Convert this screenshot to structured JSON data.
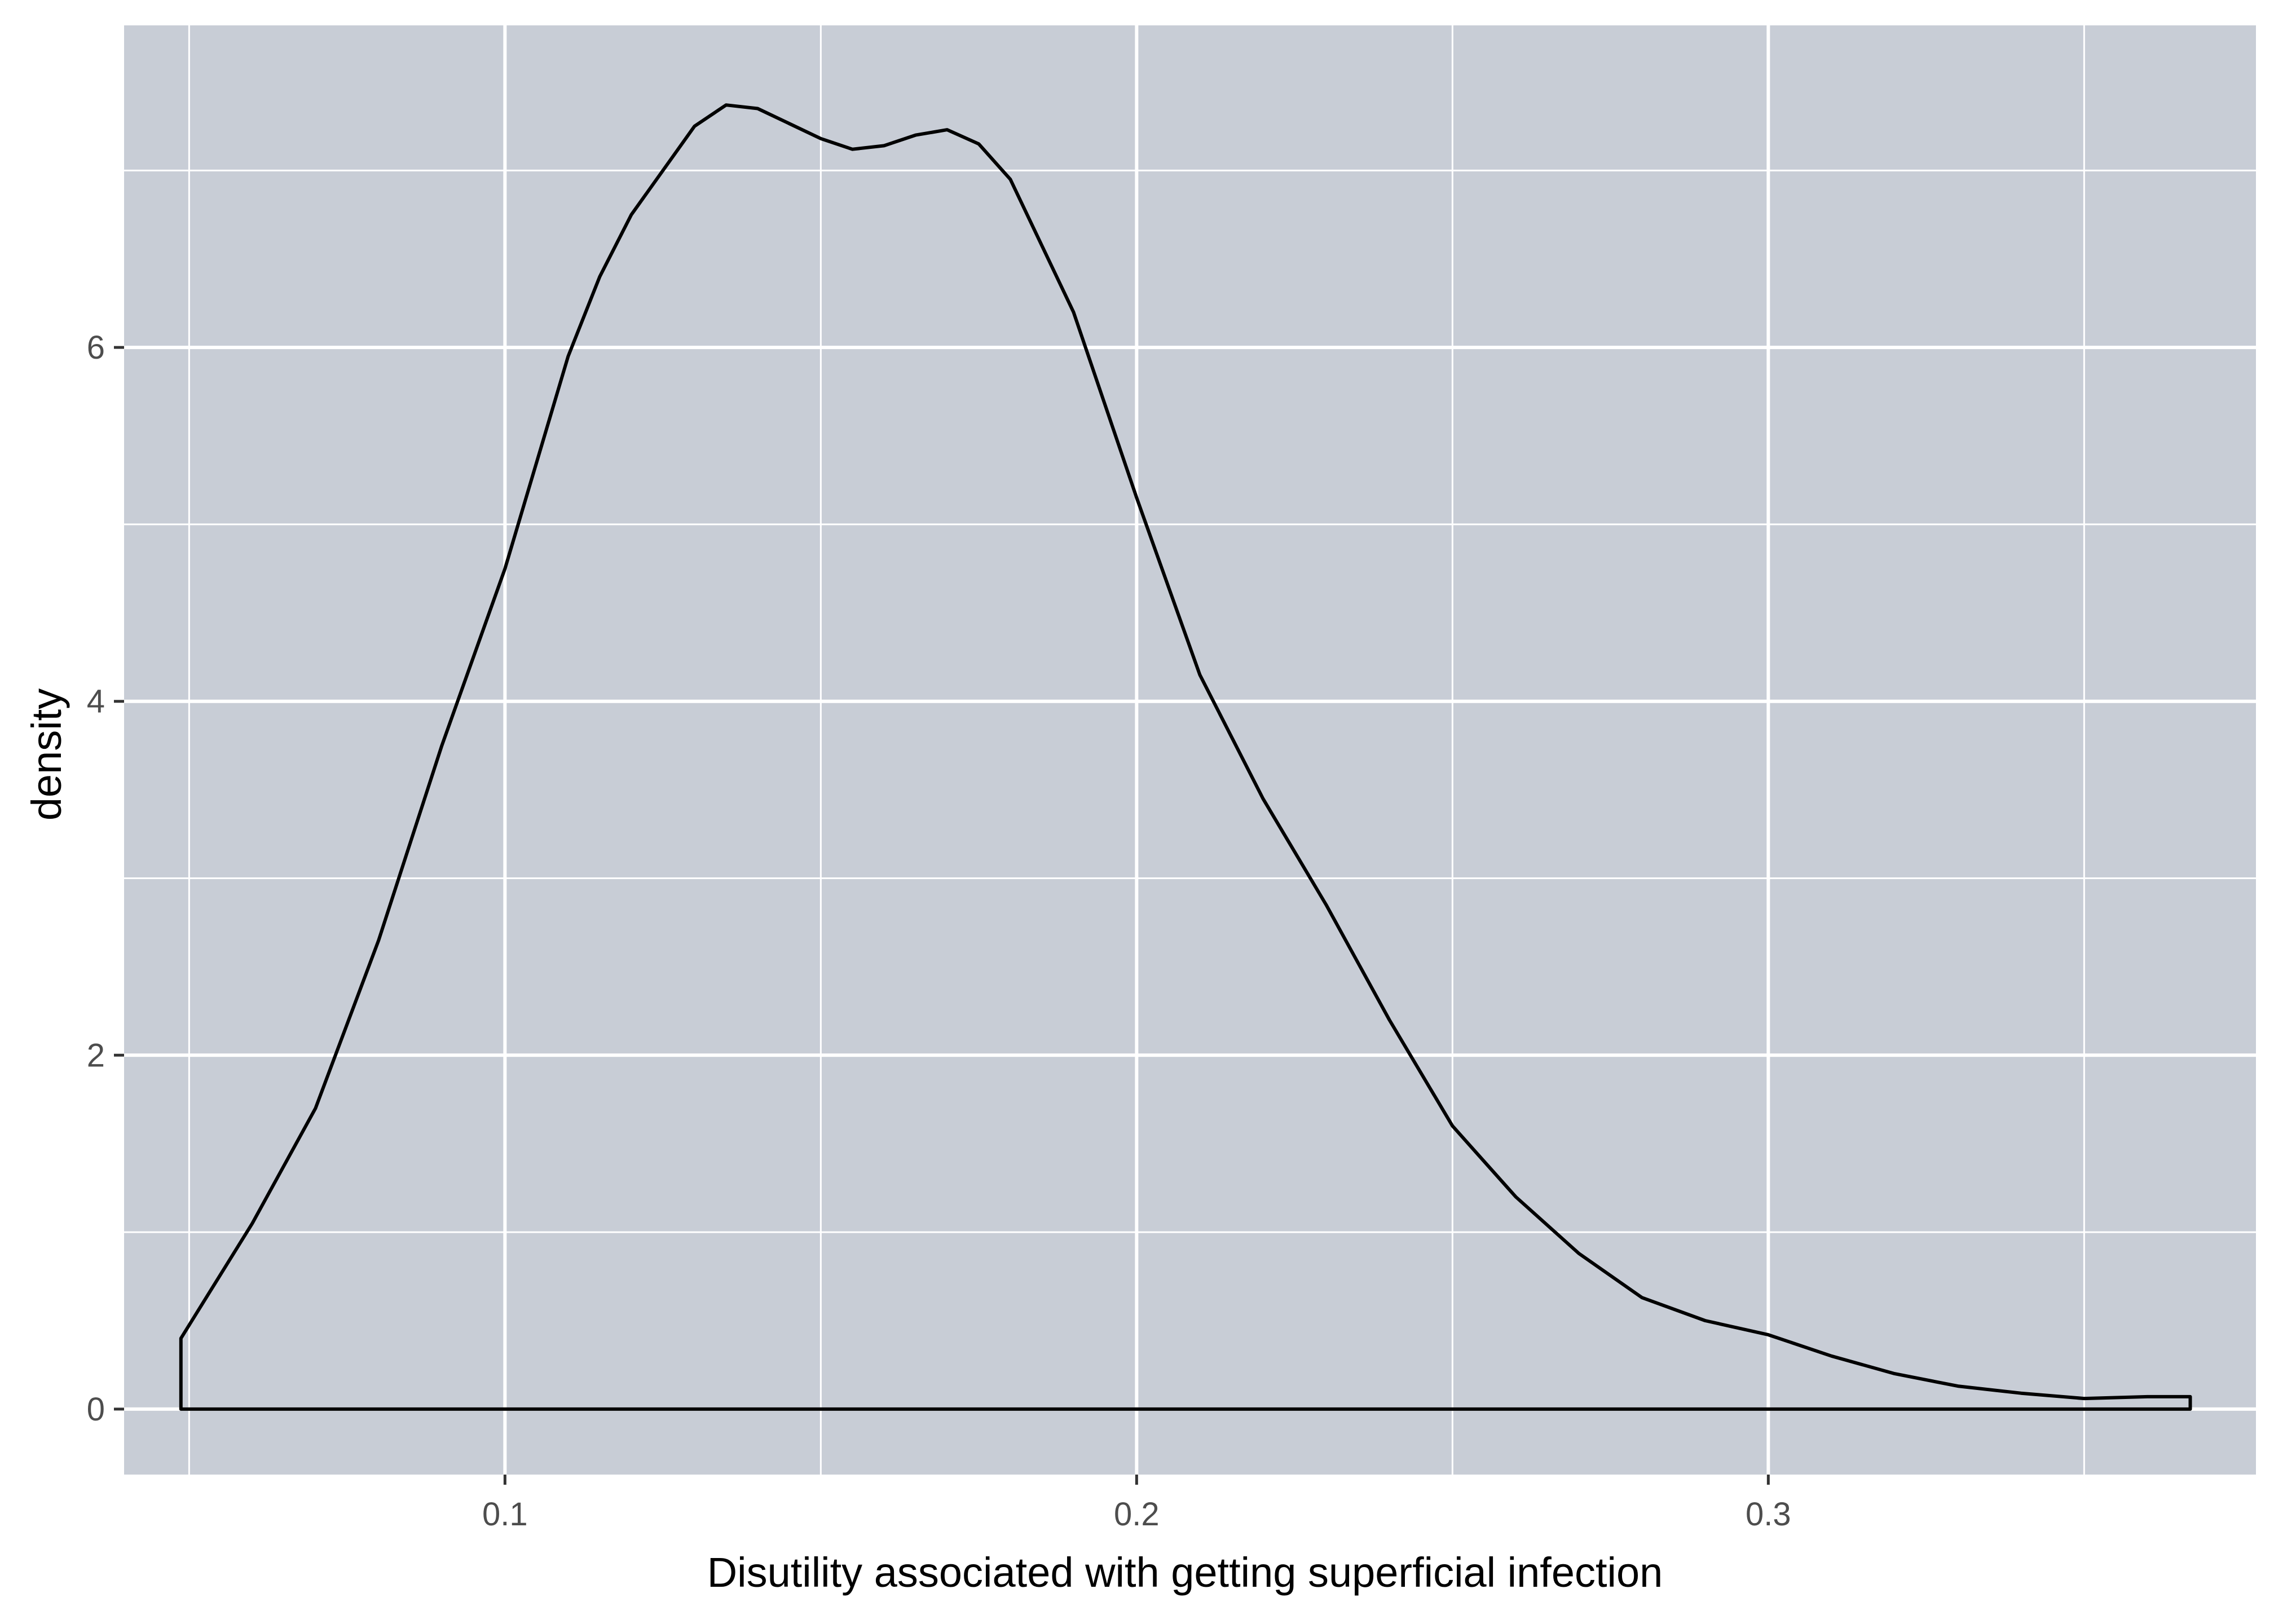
{
  "chart_data": {
    "type": "area",
    "title": "",
    "xlabel": "Disutility associated with getting  superficial infection",
    "ylabel": "density",
    "xlim": [
      0.0397,
      0.3772
    ],
    "ylim": [
      -0.37,
      7.82
    ],
    "x_ticks": [
      {
        "value": 0.1,
        "label": "0.1"
      },
      {
        "value": 0.2,
        "label": "0.2"
      },
      {
        "value": 0.3,
        "label": "0.3"
      }
    ],
    "x_minor": [
      0.05,
      0.15,
      0.25,
      0.35
    ],
    "y_ticks": [
      {
        "value": 0,
        "label": "0"
      },
      {
        "value": 2,
        "label": "2"
      },
      {
        "value": 4,
        "label": "4"
      },
      {
        "value": 6,
        "label": "6"
      }
    ],
    "y_minor": [
      1,
      3,
      5,
      7
    ],
    "grid": true,
    "colors": {
      "panel_background": "#c8cdd6",
      "grid_line": "#ffffff",
      "curve": "#000000",
      "tick_label": "#4d4d4d",
      "axis_title": "#000000",
      "page_background": "#ffffff"
    },
    "series": [
      {
        "x": [
          0.0487,
          0.06,
          0.07,
          0.08,
          0.09,
          0.1,
          0.11,
          0.115,
          0.12,
          0.13,
          0.135,
          0.14,
          0.15,
          0.155,
          0.16,
          0.165,
          0.17,
          0.175,
          0.18,
          0.19,
          0.2,
          0.21,
          0.22,
          0.23,
          0.24,
          0.25,
          0.26,
          0.27,
          0.28,
          0.29,
          0.3,
          0.31,
          0.32,
          0.33,
          0.34,
          0.35,
          0.36,
          0.3668
        ],
        "y": [
          0.4,
          1.05,
          1.7,
          2.65,
          3.75,
          4.75,
          5.95,
          6.4,
          6.75,
          7.25,
          7.37,
          7.35,
          7.18,
          7.12,
          7.14,
          7.2,
          7.23,
          7.15,
          6.95,
          6.2,
          5.15,
          4.15,
          3.45,
          2.85,
          2.2,
          1.6,
          1.2,
          0.88,
          0.63,
          0.5,
          0.42,
          0.3,
          0.2,
          0.13,
          0.09,
          0.06,
          0.07,
          0.07
        ]
      }
    ]
  }
}
